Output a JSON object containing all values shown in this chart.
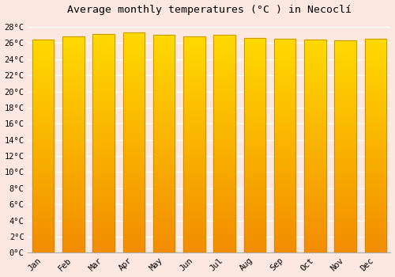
{
  "title": "Average monthly temperatures (°C ) in Necoclí",
  "months": [
    "Jan",
    "Feb",
    "Mar",
    "Apr",
    "May",
    "Jun",
    "Jul",
    "Aug",
    "Sep",
    "Oct",
    "Nov",
    "Dec"
  ],
  "values": [
    26.4,
    26.8,
    27.1,
    27.3,
    27.0,
    26.8,
    27.0,
    26.6,
    26.5,
    26.4,
    26.3,
    26.5
  ],
  "bar_color": "#FFA500",
  "bar_edge_color": "#CC8800",
  "background_color": "#fce8e0",
  "grid_color": "#ffffff",
  "yticks": [
    0,
    2,
    4,
    6,
    8,
    10,
    12,
    14,
    16,
    18,
    20,
    22,
    24,
    26,
    28
  ],
  "ylim": [
    0,
    29
  ],
  "title_fontsize": 9.5,
  "tick_fontsize": 7.5,
  "font_family": "monospace"
}
